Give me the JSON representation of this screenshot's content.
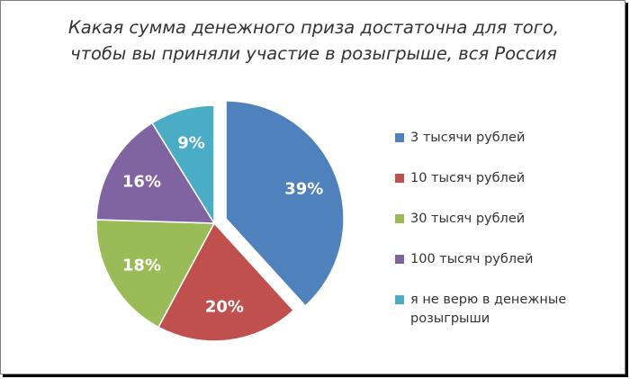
{
  "chart_data": {
    "type": "pie",
    "title_lines": [
      "Какая сумма денежного приза достаточна для того,",
      "чтобы вы приняли участие в розыгрыше, вся Россия"
    ],
    "categories": [
      "3 тысячи рублей",
      "10 тысяч рублей",
      "30 тысяч рублей",
      "100 тысяч рублей",
      "я не верю в денежные розыгрыши"
    ],
    "values": [
      39,
      20,
      18,
      16,
      9
    ],
    "value_labels": [
      "39%",
      "20%",
      "18%",
      "16%",
      "9%"
    ],
    "colors": [
      "#4f81bd",
      "#c0504d",
      "#9bbb59",
      "#8064a2",
      "#4bacc6"
    ],
    "exploded_slice": 0,
    "legend_position": "right",
    "legend_lines": [
      [
        "3 тысячи рублей"
      ],
      [
        "10 тысяч рублей"
      ],
      [
        "30 тысяч рублей"
      ],
      [
        "100 тысяч рублей"
      ],
      [
        "я не верю в денежные",
        "розыгрыши"
      ]
    ]
  }
}
